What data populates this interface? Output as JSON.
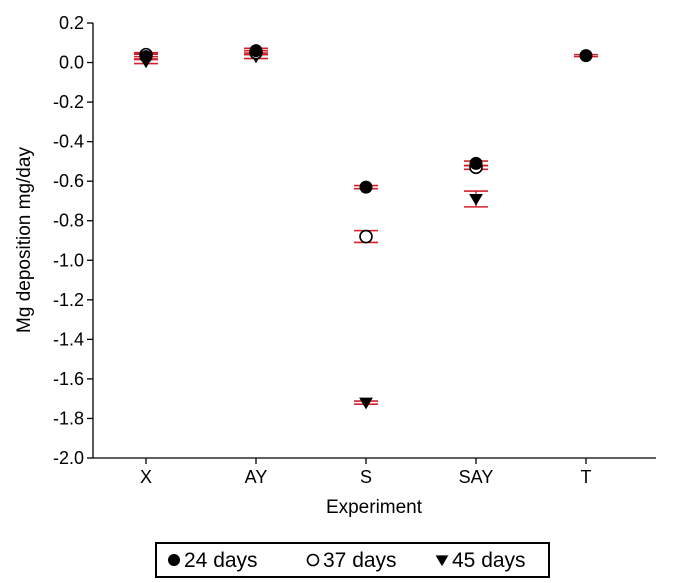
{
  "chart_data": {
    "type": "scatter",
    "categories": [
      "X",
      "AY",
      "S",
      "SAY",
      "T"
    ],
    "xlabel": "Experiment",
    "ylabel": "Mg deposition mg/day",
    "ylim": [
      -2.0,
      0.2
    ],
    "yticks": [
      0.2,
      0.0,
      -0.2,
      -0.4,
      -0.6,
      -0.8,
      -1.0,
      -1.2,
      -1.4,
      -1.6,
      -1.8,
      -2.0
    ],
    "ytick_labels": [
      "0.2",
      "0.0",
      "-0.2",
      "-0.4",
      "-0.6",
      "-0.8",
      "-1.0",
      "-1.2",
      "-1.4",
      "-1.6",
      "-1.8",
      "-2.0"
    ],
    "grid": false,
    "legend_position": "bottom-center",
    "error_bar_color": "#d4202c",
    "series": [
      {
        "name": "24 days",
        "marker": "filled-circle",
        "values": [
          0.03,
          0.06,
          -0.63,
          -0.51,
          0.035
        ],
        "errors": [
          0.012,
          0.012,
          0.008,
          0.012,
          0.005
        ]
      },
      {
        "name": "37 days",
        "marker": "open-circle",
        "values": [
          0.04,
          0.05,
          -0.88,
          -0.53,
          null
        ],
        "errors": [
          0.01,
          0.01,
          0.03,
          0.01,
          null
        ]
      },
      {
        "name": "45 days",
        "marker": "filled-triangle-down",
        "values": [
          0.005,
          0.03,
          -1.72,
          -0.69,
          null
        ],
        "errors": [
          0.01,
          0.01,
          0.008,
          0.04,
          null
        ]
      }
    ]
  }
}
